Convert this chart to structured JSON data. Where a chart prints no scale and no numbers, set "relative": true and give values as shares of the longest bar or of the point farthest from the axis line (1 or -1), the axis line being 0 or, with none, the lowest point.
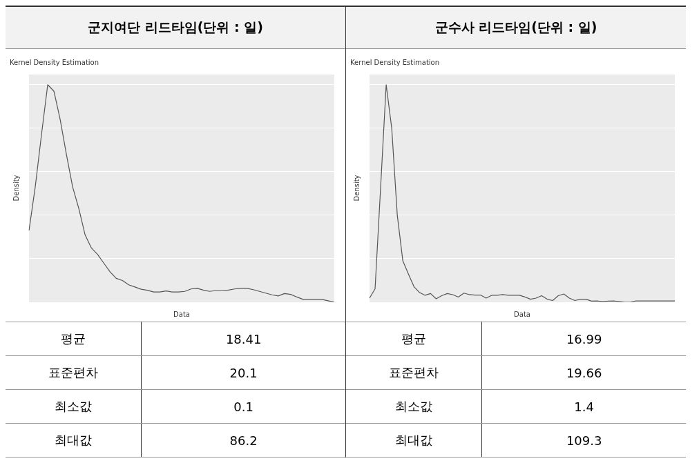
{
  "chart_data": [
    {
      "type": "line",
      "title": "군지여단 리드타임(단위 : 일)",
      "subtitle": "Kernel Density Estimation",
      "xlabel": "Data",
      "ylabel": "Density",
      "relative": true,
      "grid": "y",
      "categories": [
        null,
        null,
        null,
        null,
        null,
        null,
        null,
        null,
        null,
        null,
        null,
        null,
        null,
        null,
        null,
        null,
        null,
        null,
        null,
        null,
        null,
        null,
        null,
        null,
        null,
        null,
        null,
        null,
        null,
        null,
        null,
        null,
        null,
        null,
        null,
        null,
        null,
        null,
        null,
        null,
        null,
        null,
        null,
        null,
        null,
        null,
        null,
        null,
        null,
        null
      ],
      "series": [
        {
          "color": "#555555",
          "values": [
            0.33,
            0.53,
            0.77,
            1,
            0.97,
            0.84,
            0.68,
            0.53,
            0.43,
            0.31,
            0.25,
            0.22,
            0.18,
            0.14,
            0.11,
            0.1,
            0.08,
            0.07,
            0.06,
            0.055,
            0.047,
            0.047,
            0.052,
            0.047,
            0.047,
            0.05,
            0.061,
            0.064,
            0.056,
            0.05,
            0.054,
            0.054,
            0.056,
            0.061,
            0.064,
            0.064,
            0.058,
            0.05,
            0.042,
            0.034,
            0.029,
            0.04,
            0.036,
            0.024,
            0.013,
            0.013,
            0.013,
            0.013,
            0.007,
            0
          ]
        }
      ],
      "annotations": [
        "평균",
        "18.41",
        "표준편차",
        "20.1",
        "최소값",
        "0.1",
        "최대값",
        "86.2"
      ]
    },
    {
      "type": "line",
      "title": "군수사 리드타임(단위 : 일)",
      "subtitle": "Kernel Density Estimation",
      "xlabel": "Data",
      "ylabel": "Density",
      "relative": true,
      "grid": "y",
      "categories": [
        null,
        null,
        null,
        null,
        null,
        null,
        null,
        null,
        null,
        null,
        null,
        null,
        null,
        null,
        null,
        null,
        null,
        null,
        null,
        null,
        null,
        null,
        null,
        null,
        null,
        null,
        null,
        null,
        null,
        null,
        null,
        null,
        null,
        null,
        null,
        null,
        null,
        null,
        null,
        null,
        null,
        null,
        null,
        null,
        null,
        null,
        null,
        null,
        null,
        null,
        null,
        null,
        null,
        null,
        null,
        null
      ],
      "series": [
        {
          "color": "#555555",
          "values": [
            0.019,
            0.062,
            0.53,
            1,
            0.8,
            0.4,
            0.19,
            0.13,
            0.072,
            0.045,
            0.032,
            0.04,
            0.016,
            0.03,
            0.04,
            0.035,
            0.024,
            0.042,
            0.035,
            0.033,
            0.033,
            0.019,
            0.032,
            0.032,
            0.035,
            0.032,
            0.032,
            0.032,
            0.024,
            0.014,
            0.019,
            0.03,
            0.014,
            0.008,
            0.03,
            0.038,
            0.019,
            0.008,
            0.014,
            0.014,
            0.005,
            0.006,
            0.003,
            0.005,
            0.006,
            0.003,
            0,
            0,
            0.006,
            0.006,
            0.006,
            0.006,
            0.006,
            0.006,
            0.006,
            0.006
          ]
        }
      ],
      "annotations": [
        "평균",
        "16.99",
        "표준편차",
        "19.66",
        "최소값",
        "1.4",
        "최대값",
        "109.3"
      ]
    }
  ]
}
